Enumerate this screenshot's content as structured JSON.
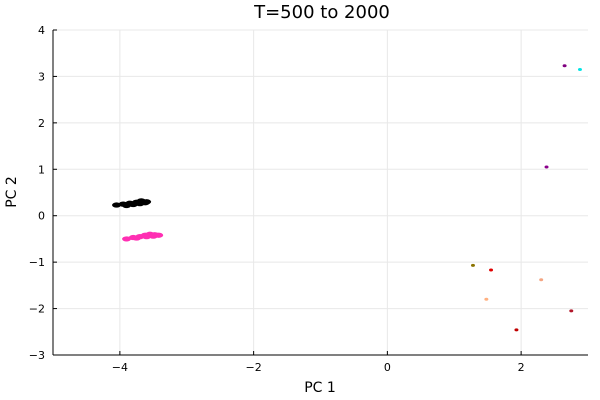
{
  "chart_data": {
    "type": "scatter",
    "title": "T=500 to 2000",
    "xlabel": "PC 1",
    "ylabel": "PC 2",
    "xlim": [
      -5,
      3
    ],
    "ylim": [
      -3,
      4
    ],
    "xticks": [
      -4,
      -2,
      0,
      2
    ],
    "xtick_labels": [
      "−4",
      "−2",
      "0",
      "2"
    ],
    "yticks": [
      -3,
      -2,
      -1,
      0,
      1,
      2,
      3,
      4
    ],
    "ytick_labels": [
      "−3",
      "−2",
      "−1",
      "0",
      "1",
      "2",
      "3",
      "4"
    ],
    "grid": true,
    "legend": "none",
    "series": [
      {
        "color": "#000000",
        "x": [
          -4.05,
          -3.95,
          -3.85,
          -3.75,
          -3.68,
          -3.6,
          -3.9,
          -3.8,
          -3.7,
          -3.62
        ],
        "y": [
          0.23,
          0.25,
          0.27,
          0.29,
          0.32,
          0.3,
          0.22,
          0.24,
          0.26,
          0.28
        ]
      },
      {
        "color": "#ff2fb3",
        "x": [
          -3.9,
          -3.8,
          -3.7,
          -3.62,
          -3.55,
          -3.48,
          -3.42,
          -3.75,
          -3.6,
          -3.5
        ],
        "y": [
          -0.5,
          -0.47,
          -0.45,
          -0.42,
          -0.4,
          -0.41,
          -0.42,
          -0.48,
          -0.45,
          -0.44
        ]
      },
      {
        "color": "#800080",
        "x": [
          2.65
        ],
        "y": [
          3.23
        ]
      },
      {
        "color": "#00e5e5",
        "x": [
          2.88
        ],
        "y": [
          3.15
        ]
      },
      {
        "color": "#8b008b",
        "x": [
          2.38
        ],
        "y": [
          1.05
        ]
      },
      {
        "color": "#8b7300",
        "x": [
          1.28
        ],
        "y": [
          -1.07
        ]
      },
      {
        "color": "#e00000",
        "x": [
          1.55
        ],
        "y": [
          -1.17
        ]
      },
      {
        "color": "#f4a582",
        "x": [
          2.3
        ],
        "y": [
          -1.38
        ]
      },
      {
        "color": "#ffb080",
        "x": [
          1.48
        ],
        "y": [
          -1.8
        ]
      },
      {
        "color": "#b2182b",
        "x": [
          2.75
        ],
        "y": [
          -2.05
        ]
      },
      {
        "color": "#c00000",
        "x": [
          1.93
        ],
        "y": [
          -2.46
        ]
      }
    ]
  }
}
